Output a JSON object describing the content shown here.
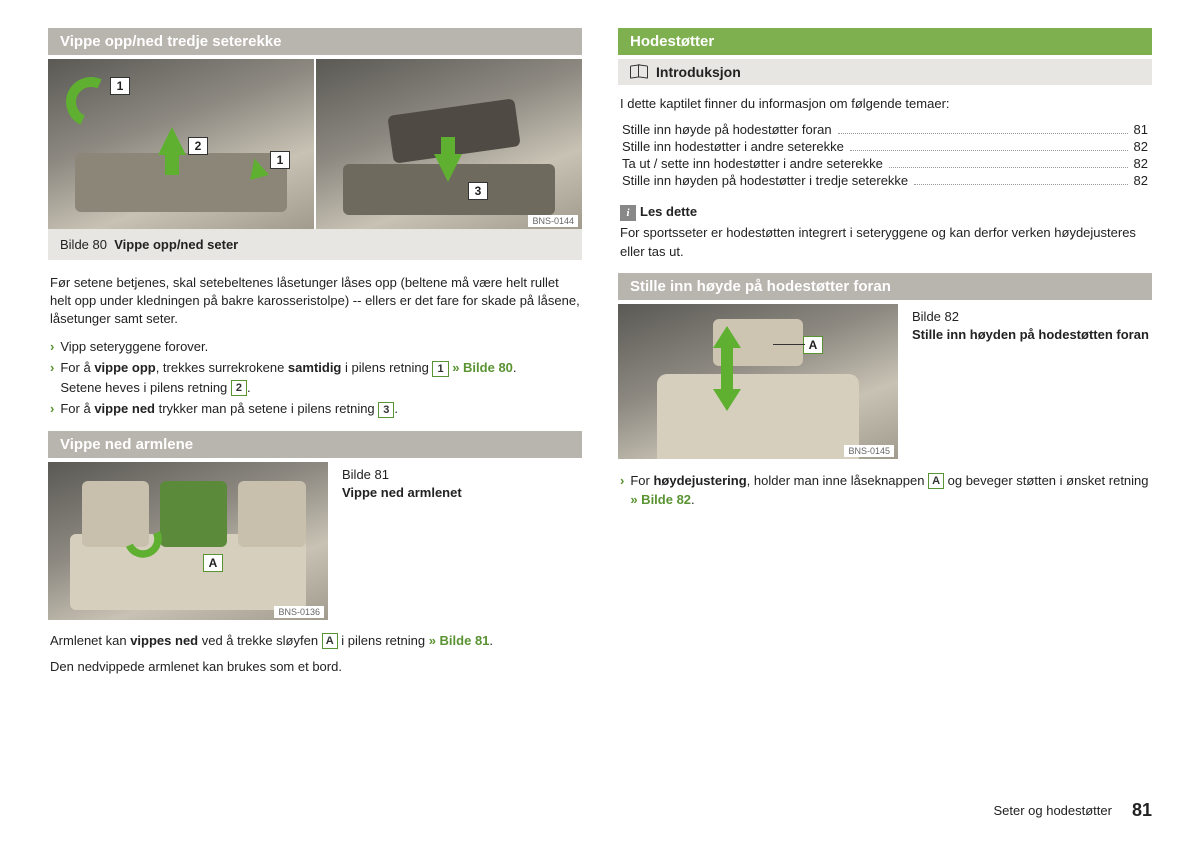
{
  "page": {
    "footer_text": "Seter og hodestøtter",
    "page_number": "81"
  },
  "left": {
    "sec1": {
      "title": "Vippe opp/ned tredje seterekke",
      "img_id": "BNS-0144",
      "callouts": {
        "a": "1",
        "b": "2",
        "c": "1",
        "d": "3"
      },
      "caption_prefix": "Bilde 80",
      "caption_text": "Vippe opp/ned seter",
      "para": "Før setene betjenes, skal setebeltenes låsetunger låses opp (beltene må være helt rullet helt opp under kledningen på bakre karosseristolpe) -- ellers er det fare for skade på låsene, låsetunger samt seter.",
      "bul1": "Vipp seteryggene forover.",
      "bul2a": "For å ",
      "bul2b": "vippe opp",
      "bul2c": ", trekkes surrekrokene ",
      "bul2d": "samtidig",
      "bul2e": " i pilens retning ",
      "bul2_ref": "» Bilde 80",
      "bul2_tail": ".",
      "bul2_line2a": "Setene heves i pilens retning ",
      "bul3a": "For å ",
      "bul3b": "vippe ned",
      "bul3c": " trykker man på setene i pilens retning "
    },
    "sec2": {
      "title": "Vippe ned armlene",
      "img_id": "BNS-0136",
      "callout": "A",
      "caption_line1": "Bilde 81",
      "caption_line2": "Vippe ned armlenet",
      "p1a": "Armlenet kan ",
      "p1b": "vippes ned",
      "p1c": " ved å trekke sløyfen ",
      "p1d": " i pilens retning ",
      "p1_ref": "» Bilde 81",
      "p1_tail": ".",
      "p2": "Den nedvippede armlenet kan brukes som et bord."
    }
  },
  "right": {
    "sec1": {
      "title": "Hodestøtter",
      "intro_heading": "Introduksjon",
      "intro_text": "I dette kaptilet finner du informasjon om følgende temaer:",
      "toc": [
        {
          "label": "Stille inn høyde på hodestøtter foran",
          "page": "81"
        },
        {
          "label": "Stille inn hodestøtter i andre seterekke",
          "page": "82"
        },
        {
          "label": "Ta ut / sette inn hodestøtter i andre seterekke",
          "page": "82"
        },
        {
          "label": "Stille inn høyden på hodestøtter i tredje seterekke",
          "page": "82"
        }
      ],
      "note_heading": "Les dette",
      "note_text": "For sportsseter er hodestøtten integrert i seteryggene og kan derfor verken høydejusteres eller tas ut."
    },
    "sec2": {
      "title": "Stille inn høyde på hodestøtter foran",
      "img_id": "BNS-0145",
      "callout": "A",
      "caption_line1": "Bilde 82",
      "caption_line2": "Stille inn høyden på hodestøtten foran",
      "bul_a": "For ",
      "bul_b": "høydejustering",
      "bul_c": ", holder man inne låseknappen ",
      "bul_d": " og beveger støtten i ønsket retning ",
      "bul_ref": "» Bilde 82",
      "bul_tail": "."
    }
  }
}
